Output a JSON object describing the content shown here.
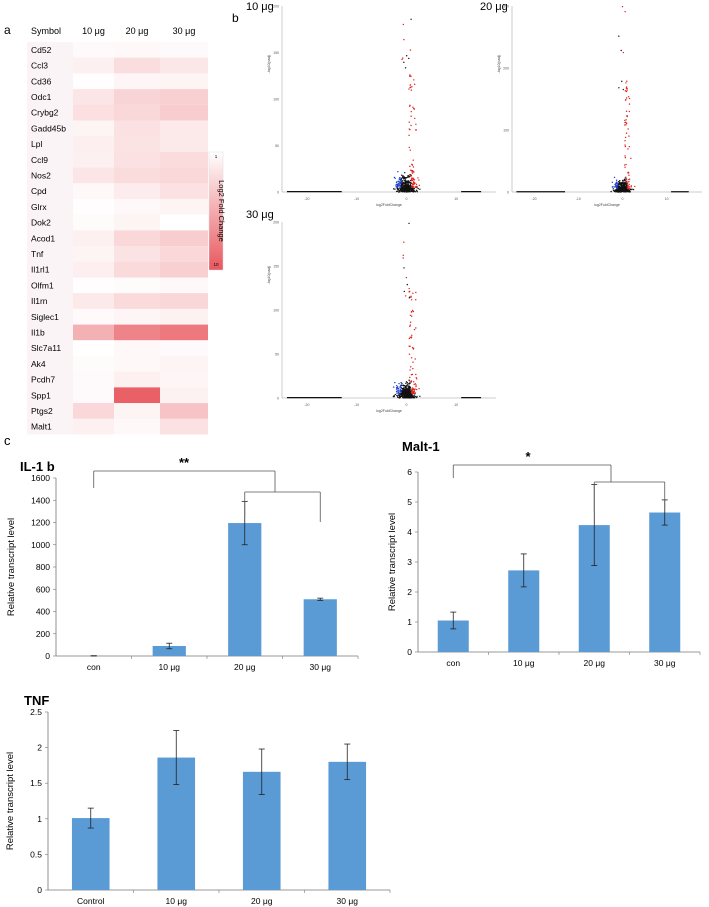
{
  "panel_labels": {
    "a": "a",
    "b": "b",
    "c": "c"
  },
  "colors": {
    "heat_max": "#e8575e",
    "bar": "#5b9bd5",
    "volcano_up": "#e0201b",
    "volcano_down": "#1f3fcf",
    "volcano_ns": "#111111"
  },
  "chart_data": [
    {
      "id": "heatmap",
      "type": "heatmap",
      "row_header": "Symbol",
      "columns": [
        "10 μg",
        "20 μg",
        "30 μg"
      ],
      "rows": [
        "Cd52",
        "Ccl3",
        "Cd36",
        "Odc1",
        "Crybg2",
        "Gadd45b",
        "Lpl",
        "Ccl9",
        "Nos2",
        "Cpd",
        "Glrx",
        "Dok2",
        "Acod1",
        "Tnf",
        "Il1rl1",
        "Olfm1",
        "Il1rn",
        "Siglec1",
        "Il1b",
        "Slc7a11",
        "Ak4",
        "Pcdh7",
        "Spp1",
        "Ptgs2",
        "Malt1"
      ],
      "values": [
        [
          1.3,
          1.4,
          1.3
        ],
        [
          1.8,
          2.8,
          2.3
        ],
        [
          1.1,
          1.5,
          1.6
        ],
        [
          2.4,
          3.3,
          3.5
        ],
        [
          2.7,
          3.1,
          3.7
        ],
        [
          1.6,
          2.6,
          2.1
        ],
        [
          1.9,
          2.5,
          2.1
        ],
        [
          1.8,
          2.6,
          2.9
        ],
        [
          2.4,
          2.9,
          3.1
        ],
        [
          1.4,
          2.0,
          2.6
        ],
        [
          1.1,
          1.4,
          1.6
        ],
        [
          1.2,
          1.6,
          1.0
        ],
        [
          1.8,
          3.1,
          3.7
        ],
        [
          1.6,
          2.5,
          3.1
        ],
        [
          1.9,
          3.0,
          3.5
        ],
        [
          1.1,
          1.2,
          1.4
        ],
        [
          2.2,
          3.0,
          3.2
        ],
        [
          1.3,
          1.5,
          1.7
        ],
        [
          5.2,
          7.6,
          8.2
        ],
        [
          1.0,
          1.4,
          1.3
        ],
        [
          1.2,
          1.4,
          1.6
        ],
        [
          1.3,
          1.8,
          1.5
        ],
        [
          1.3,
          9.5,
          1.7
        ],
        [
          3.1,
          1.6,
          4.2
        ],
        [
          1.8,
          1.4,
          2.6
        ]
      ],
      "legend": {
        "title": "Log2 Fold Change",
        "min_label": "1",
        "max_label": "10",
        "min": 1,
        "max": 10
      }
    },
    {
      "id": "volcano-10",
      "type": "scatter",
      "title": "10  μg",
      "xlabel": "log2FoldChange",
      "ylabel": "-log10(padj)",
      "ymax": 250,
      "yticks": [
        "200",
        "150",
        "100",
        "50",
        "0"
      ],
      "xticks": [
        "-20",
        "-10",
        "0",
        "10"
      ]
    },
    {
      "id": "volcano-20",
      "type": "scatter",
      "title": "20  μg",
      "xlabel": "log2FoldChange",
      "ylabel": "-log10(padj)",
      "ymax": 350,
      "yticks": [
        "300",
        "200",
        "100",
        "0"
      ],
      "xticks": [
        "-20",
        "-10",
        "0",
        "10"
      ]
    },
    {
      "id": "volcano-30",
      "type": "scatter",
      "title": "30  μg",
      "xlabel": "log2FoldChange",
      "ylabel": "-log10(padj)",
      "ymax": 250,
      "yticks": [
        "200",
        "150",
        "100",
        "50",
        "0"
      ],
      "xticks": [
        "-20",
        "-10",
        "0",
        "10"
      ]
    },
    {
      "id": "il1b",
      "type": "bar",
      "title": "IL-1 b",
      "ylabel": "Relative transcript level",
      "categories": [
        "con",
        "10 μg",
        "20 μg",
        "30 μg"
      ],
      "values": [
        1,
        90,
        1195,
        510
      ],
      "errors": [
        2,
        25,
        195,
        10
      ],
      "ylim": [
        0,
        1600
      ],
      "ytick_step": 200,
      "significance": "**"
    },
    {
      "id": "malt1",
      "type": "bar",
      "title": "Malt-1",
      "ylabel": "Relative transcript level",
      "categories": [
        "con",
        "10 μg",
        "20 μg",
        "30 μg"
      ],
      "values": [
        1.05,
        2.72,
        4.23,
        4.65
      ],
      "errors": [
        0.28,
        0.55,
        1.35,
        0.42
      ],
      "ylim": [
        0,
        6
      ],
      "ytick_step": 1,
      "significance": "*"
    },
    {
      "id": "tnf",
      "type": "bar",
      "title": "TNF",
      "ylabel": "Relative transcript level",
      "categories": [
        "Control",
        "10 μg",
        "20 μg",
        "30 μg"
      ],
      "values": [
        1.01,
        1.86,
        1.66,
        1.8
      ],
      "errors": [
        0.14,
        0.38,
        0.32,
        0.25
      ],
      "ylim": [
        0,
        2.5
      ],
      "ytick_step": 0.5,
      "significance": ""
    }
  ]
}
